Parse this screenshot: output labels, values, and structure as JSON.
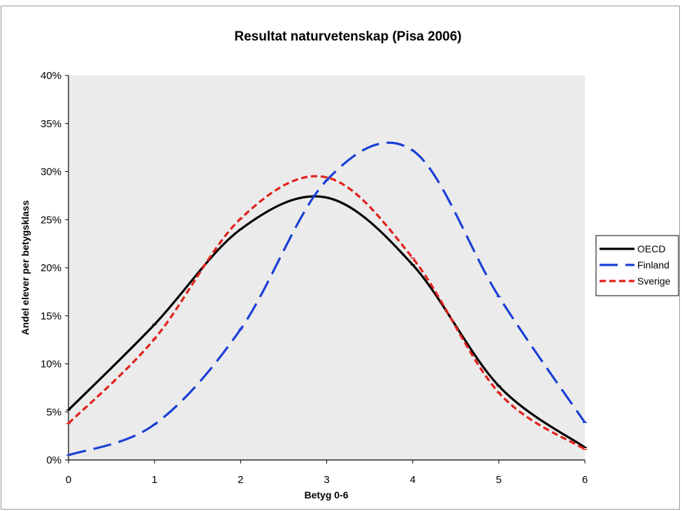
{
  "chart_data": {
    "type": "line",
    "title": "Resultat naturvetenskap (Pisa 2006)",
    "xlabel": "Betyg 0-6",
    "ylabel": "Andel elever per betygsklass",
    "x": [
      0,
      1,
      2,
      3,
      4,
      5,
      6
    ],
    "xlim": [
      0,
      6
    ],
    "ylim": [
      0,
      40
    ],
    "x_ticks": [
      "0",
      "1",
      "2",
      "3",
      "4",
      "5",
      "6"
    ],
    "y_ticks": [
      "0%",
      "5%",
      "10%",
      "15%",
      "20%",
      "25%",
      "30%",
      "35%",
      "40%"
    ],
    "grid": false,
    "plot_background": "#ebebeb",
    "legend": {
      "position": "right"
    },
    "series": [
      {
        "name": "OECD",
        "color": "#000000",
        "style": "solid",
        "values": [
          5.2,
          14.1,
          24.0,
          27.3,
          20.3,
          7.7,
          1.3
        ]
      },
      {
        "name": "Finland",
        "color": "#1b3fd6",
        "style": "long-dash",
        "values": [
          0.5,
          3.7,
          13.6,
          29.1,
          32.2,
          17.0,
          3.9
        ]
      },
      {
        "name": "Sverige",
        "color": "#e0201a",
        "style": "short-dash",
        "values": [
          3.8,
          12.6,
          25.1,
          29.4,
          21.0,
          7.0,
          1.1
        ]
      }
    ]
  }
}
